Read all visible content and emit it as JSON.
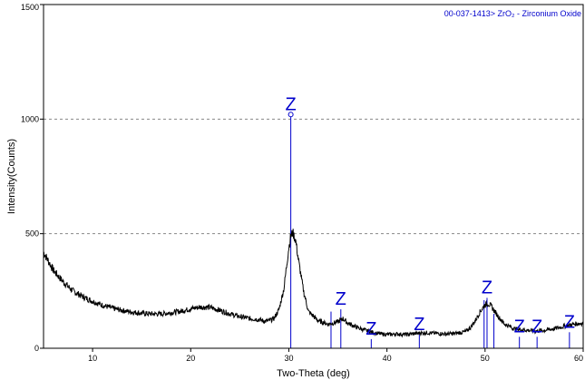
{
  "chart_data": {
    "type": "line",
    "title": "",
    "xlabel": "Two-Theta (deg)",
    "ylabel": "Intensity(Counts)",
    "xlim": [
      5,
      60
    ],
    "ylim": [
      0,
      1500
    ],
    "x_ticks": [
      10,
      20,
      30,
      40,
      50,
      60
    ],
    "x_tick_labels": [
      "10",
      "20",
      "30",
      "40",
      "50",
      "60"
    ],
    "y_ticks": [
      0,
      500,
      1000,
      1500
    ],
    "y_tick_labels": [
      "0",
      "500",
      "1000",
      "1500"
    ],
    "grid": {
      "y": true,
      "x": false,
      "style": "dashed"
    },
    "legend": {
      "text": "00-037-1413> ZrO₂ - Zirconium Oxide",
      "placement": "top-right"
    },
    "series": [
      {
        "x": [
          5,
          6,
          7,
          8,
          9,
          10,
          11,
          12,
          13,
          14,
          15,
          16,
          17,
          18,
          19,
          20,
          21,
          22,
          23,
          24,
          25,
          26,
          27,
          27.5,
          28,
          28.5,
          29,
          29.5,
          29.8,
          30,
          30.2,
          30.4,
          30.7,
          31,
          31.5,
          32,
          33,
          34,
          35,
          35.5,
          36,
          37,
          38,
          39,
          40,
          41,
          42,
          43,
          44,
          45,
          46,
          47,
          48,
          48.5,
          49,
          49.5,
          50,
          50.3,
          50.6,
          51,
          51.5,
          52,
          53,
          54,
          55,
          56,
          57,
          58,
          59,
          60
        ],
        "y": [
          420,
          340,
          290,
          250,
          225,
          205,
          188,
          175,
          165,
          158,
          153,
          150,
          150,
          155,
          162,
          172,
          180,
          178,
          165,
          150,
          138,
          130,
          125,
          118,
          120,
          130,
          170,
          260,
          370,
          440,
          490,
          505,
          470,
          380,
          250,
          160,
          120,
          105,
          115,
          130,
          110,
          90,
          75,
          65,
          60,
          62,
          60,
          65,
          68,
          65,
          62,
          65,
          72,
          90,
          120,
          160,
          190,
          195,
          185,
          160,
          130,
          105,
          85,
          80,
          75,
          78,
          85,
          95,
          105,
          110
        ]
      }
    ],
    "reference_lines": {
      "label": "Z",
      "x": [
        30.2,
        34.3,
        35.3,
        38.4,
        43.3,
        49.9,
        50.2,
        50.9,
        53.5,
        55.3,
        58.6
      ],
      "y": [
        1020,
        160,
        170,
        40,
        60,
        210,
        220,
        150,
        50,
        50,
        70
      ],
      "labeled_x": [
        30.2,
        35.3,
        38.4,
        43.3,
        50.2,
        53.5,
        55.3,
        58.6
      ],
      "labeled_y": [
        1020,
        170,
        40,
        60,
        220,
        50,
        50,
        70
      ]
    },
    "colors": {
      "trace": "#000000",
      "reference": "#0000cc",
      "grid": "#888888"
    }
  }
}
